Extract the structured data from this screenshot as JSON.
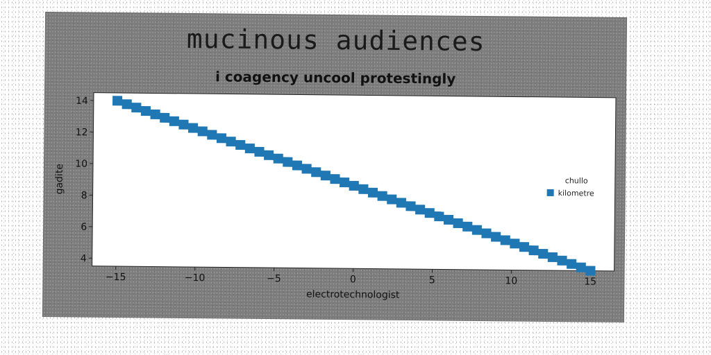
{
  "figure": {
    "title": "mucinous audiences",
    "subtitle": "i coagency uncool protestingly"
  },
  "chart_data": {
    "type": "scatter",
    "title": "i coagency uncool protestingly",
    "xlabel": "electrotechnologist",
    "ylabel": "gadite",
    "xlim": [
      -16.5,
      16.5
    ],
    "ylim": [
      3.5,
      14.5
    ],
    "xticks": [
      -15,
      -10,
      -5,
      0,
      5,
      10,
      15
    ],
    "xtick_labels": [
      "−15",
      "−10",
      "−5",
      "0",
      "5",
      "10",
      "15"
    ],
    "yticks": [
      4,
      6,
      8,
      10,
      12,
      14
    ],
    "grid": false,
    "legend": {
      "title": "chullo",
      "placement": "center-right"
    },
    "series": [
      {
        "name": "kilometre",
        "color": "#1f77b4",
        "marker": "square",
        "x": [
          -15,
          -14.4,
          -13.8,
          -13.2,
          -12.6,
          -12,
          -11.4,
          -10.8,
          -10.2,
          -9.6,
          -9,
          -8.4,
          -7.8,
          -7.2,
          -6.6,
          -6,
          -5.4,
          -4.8,
          -4.2,
          -3.6,
          -3,
          -2.4,
          -1.8,
          -1.2,
          -0.6,
          0,
          0.6,
          1.2,
          1.8,
          2.4,
          3,
          3.6,
          4.2,
          4.8,
          5.4,
          6,
          6.6,
          7.2,
          7.8,
          8.4,
          9,
          9.6,
          10.2,
          10.8,
          11.4,
          12,
          12.6,
          13.2,
          13.8,
          14.4,
          15
        ],
        "y": [
          14.0,
          13.79,
          13.58,
          13.37,
          13.16,
          12.95,
          12.74,
          12.53,
          12.32,
          12.11,
          11.9,
          11.69,
          11.48,
          11.27,
          11.06,
          10.85,
          10.64,
          10.43,
          10.22,
          10.01,
          9.8,
          9.59,
          9.38,
          9.17,
          8.96,
          8.75,
          8.54,
          8.33,
          8.12,
          7.91,
          7.7,
          7.49,
          7.28,
          7.07,
          6.86,
          6.65,
          6.44,
          6.23,
          6.02,
          5.81,
          5.6,
          5.39,
          5.18,
          4.97,
          4.76,
          4.55,
          4.34,
          4.13,
          3.92,
          3.71,
          3.5
        ]
      }
    ]
  }
}
